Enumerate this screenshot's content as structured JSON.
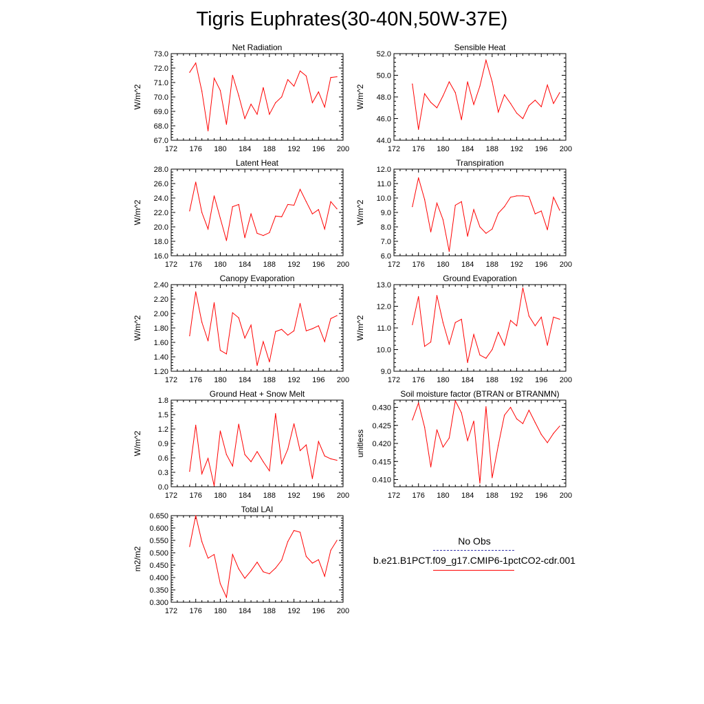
{
  "title": "Tigris Euphrates(30-40N,50W-37E)",
  "colors": {
    "model_line": "#ff0000",
    "obs_line": "#3333aa"
  },
  "legend": {
    "obs_label": "No Obs",
    "model_label": "b.e21.B1PCT.f09_g17.CMIP6-1pctCO2-cdr.001"
  },
  "chart_data": [
    {
      "type": "line",
      "title": "Net Radiation",
      "ylabel": "W/m^2",
      "xlim": [
        172,
        200
      ],
      "xticks": [
        "172",
        "176",
        "180",
        "184",
        "188",
        "192",
        "196",
        "200"
      ],
      "ylim": [
        67.0,
        73.0
      ],
      "yticks": [
        "67.0",
        "68.0",
        "69.0",
        "70.0",
        "71.0",
        "72.0",
        "73.0"
      ],
      "x": [
        175,
        176,
        177,
        178,
        179,
        180,
        181,
        182,
        183,
        184,
        185,
        186,
        187,
        188,
        189,
        190,
        191,
        192,
        193,
        194,
        195,
        196,
        197,
        198,
        199
      ],
      "series": [
        {
          "values": [
            71.7,
            72.35,
            70.4,
            67.65,
            71.3,
            70.45,
            68.1,
            71.5,
            70.1,
            68.5,
            69.5,
            68.8,
            70.65,
            68.8,
            69.6,
            70.0,
            71.2,
            70.75,
            71.8,
            71.45,
            69.6,
            70.35,
            69.3,
            71.35,
            71.4
          ]
        }
      ]
    },
    {
      "type": "line",
      "title": "Sensible Heat",
      "ylabel": "W/m^2",
      "xlim": [
        172,
        200
      ],
      "xticks": [
        "172",
        "176",
        "180",
        "184",
        "188",
        "192",
        "196",
        "200"
      ],
      "ylim": [
        44.0,
        52.0
      ],
      "yticks": [
        "44.0",
        "46.0",
        "48.0",
        "50.0",
        "52.0"
      ],
      "x": [
        175,
        176,
        177,
        178,
        179,
        180,
        181,
        182,
        183,
        184,
        185,
        186,
        187,
        188,
        189,
        190,
        191,
        192,
        193,
        194,
        195,
        196,
        197,
        198,
        199
      ],
      "series": [
        {
          "values": [
            49.2,
            45.0,
            48.3,
            47.5,
            47.0,
            48.1,
            49.4,
            48.4,
            45.9,
            49.4,
            47.3,
            49.0,
            51.4,
            49.4,
            46.6,
            48.2,
            47.4,
            46.5,
            46.0,
            47.2,
            47.7,
            47.1,
            49.1,
            47.4,
            48.4
          ]
        }
      ]
    },
    {
      "type": "line",
      "title": "Latent Heat",
      "ylabel": "W/m^2",
      "xlim": [
        172,
        200
      ],
      "xticks": [
        "172",
        "176",
        "180",
        "184",
        "188",
        "192",
        "196",
        "200"
      ],
      "ylim": [
        16.0,
        28.0
      ],
      "yticks": [
        "16.0",
        "18.0",
        "20.0",
        "22.0",
        "24.0",
        "26.0",
        "28.0"
      ],
      "x": [
        175,
        176,
        177,
        178,
        179,
        180,
        181,
        182,
        183,
        184,
        185,
        186,
        187,
        188,
        189,
        190,
        191,
        192,
        193,
        194,
        195,
        196,
        197,
        198,
        199
      ],
      "series": [
        {
          "values": [
            22.2,
            26.2,
            22.0,
            19.7,
            24.3,
            21.2,
            18.1,
            22.8,
            23.1,
            18.5,
            21.8,
            19.1,
            18.8,
            19.2,
            21.5,
            21.4,
            23.1,
            23.0,
            25.2,
            23.5,
            21.8,
            22.4,
            19.7,
            23.5,
            22.5
          ]
        }
      ]
    },
    {
      "type": "line",
      "title": "Transpiration",
      "ylabel": "W/m^2",
      "xlim": [
        172,
        200
      ],
      "xticks": [
        "172",
        "176",
        "180",
        "184",
        "188",
        "192",
        "196",
        "200"
      ],
      "ylim": [
        6.0,
        12.0
      ],
      "yticks": [
        "6.0",
        "7.0",
        "8.0",
        "9.0",
        "10.0",
        "11.0",
        "12.0"
      ],
      "x": [
        175,
        176,
        177,
        178,
        179,
        180,
        181,
        182,
        183,
        184,
        185,
        186,
        187,
        188,
        189,
        190,
        191,
        192,
        193,
        194,
        195,
        196,
        197,
        198,
        199
      ],
      "series": [
        {
          "values": [
            9.4,
            11.4,
            9.9,
            7.65,
            9.65,
            8.5,
            6.3,
            9.5,
            9.75,
            7.35,
            9.2,
            8.0,
            7.55,
            7.85,
            8.95,
            9.4,
            10.05,
            10.15,
            10.15,
            10.1,
            8.9,
            9.1,
            7.8,
            10.05,
            9.15
          ]
        }
      ]
    },
    {
      "type": "line",
      "title": "Canopy Evaporation",
      "ylabel": "W/m^2",
      "xlim": [
        172,
        200
      ],
      "xticks": [
        "172",
        "176",
        "180",
        "184",
        "188",
        "192",
        "196",
        "200"
      ],
      "ylim": [
        1.2,
        2.4
      ],
      "yticks": [
        "1.20",
        "1.40",
        "1.60",
        "1.80",
        "2.00",
        "2.20",
        "2.40"
      ],
      "x": [
        175,
        176,
        177,
        178,
        179,
        180,
        181,
        182,
        183,
        184,
        185,
        186,
        187,
        188,
        189,
        190,
        191,
        192,
        193,
        194,
        195,
        196,
        197,
        198,
        199
      ],
      "series": [
        {
          "values": [
            1.69,
            2.3,
            1.88,
            1.62,
            2.15,
            1.49,
            1.44,
            2.01,
            1.94,
            1.66,
            1.84,
            1.28,
            1.61,
            1.33,
            1.75,
            1.78,
            1.7,
            1.76,
            2.14,
            1.76,
            1.79,
            1.83,
            1.61,
            1.93,
            1.97
          ]
        }
      ]
    },
    {
      "type": "line",
      "title": "Ground Evaporation",
      "ylabel": "W/m^2",
      "xlim": [
        172,
        200
      ],
      "xticks": [
        "172",
        "176",
        "180",
        "184",
        "188",
        "192",
        "196",
        "200"
      ],
      "ylim": [
        9.0,
        13.0
      ],
      "yticks": [
        "9.0",
        "10.0",
        "11.0",
        "12.0",
        "13.0"
      ],
      "x": [
        175,
        176,
        177,
        178,
        179,
        180,
        181,
        182,
        183,
        184,
        185,
        186,
        187,
        188,
        189,
        190,
        191,
        192,
        193,
        194,
        195,
        196,
        197,
        198,
        199
      ],
      "series": [
        {
          "values": [
            11.15,
            12.45,
            10.15,
            10.35,
            12.5,
            11.25,
            10.25,
            11.25,
            11.4,
            9.4,
            10.7,
            9.75,
            9.6,
            10.0,
            10.8,
            10.2,
            11.35,
            11.1,
            12.85,
            11.55,
            11.1,
            11.5,
            10.2,
            11.5,
            11.4
          ]
        }
      ]
    },
    {
      "type": "line",
      "title": "Ground Heat + Snow Melt",
      "ylabel": "W/m^2",
      "xlim": [
        172,
        200
      ],
      "xticks": [
        "172",
        "176",
        "180",
        "184",
        "188",
        "192",
        "196",
        "200"
      ],
      "ylim": [
        0.0,
        1.8
      ],
      "yticks": [
        "0.0",
        "0.3",
        "0.6",
        "0.9",
        "1.2",
        "1.5",
        "1.8"
      ],
      "x": [
        175,
        176,
        177,
        178,
        179,
        180,
        181,
        182,
        183,
        184,
        185,
        186,
        187,
        188,
        189,
        190,
        191,
        192,
        193,
        194,
        195,
        196,
        197,
        198,
        199
      ],
      "series": [
        {
          "values": [
            0.32,
            1.28,
            0.27,
            0.59,
            0.02,
            1.16,
            0.67,
            0.43,
            1.3,
            0.67,
            0.52,
            0.73,
            0.52,
            0.33,
            1.52,
            0.48,
            0.78,
            1.31,
            0.75,
            0.87,
            0.17,
            0.94,
            0.64,
            0.58,
            0.55
          ]
        }
      ]
    },
    {
      "type": "line",
      "title": "Soil moisture factor (BTRAN or BTRANMN)",
      "ylabel": "unitless",
      "xlim": [
        172,
        200
      ],
      "xticks": [
        "172",
        "176",
        "180",
        "184",
        "188",
        "192",
        "196",
        "200"
      ],
      "ylim": [
        0.408,
        0.432
      ],
      "yticks": [
        "0.410",
        "0.415",
        "0.420",
        "0.425",
        "0.430"
      ],
      "x": [
        175,
        176,
        177,
        178,
        179,
        180,
        181,
        182,
        183,
        184,
        185,
        186,
        187,
        188,
        189,
        190,
        191,
        192,
        193,
        194,
        195,
        196,
        197,
        198,
        199
      ],
      "series": [
        {
          "values": [
            0.4265,
            0.4312,
            0.4245,
            0.4135,
            0.4238,
            0.419,
            0.4215,
            0.4318,
            0.4285,
            0.4208,
            0.4262,
            0.409,
            0.4302,
            0.4105,
            0.4195,
            0.4278,
            0.43,
            0.4268,
            0.4255,
            0.4292,
            0.4258,
            0.4225,
            0.4202,
            0.4228,
            0.4248
          ]
        }
      ]
    },
    {
      "type": "line",
      "title": "Total LAI",
      "ylabel": "m2/m2",
      "xlim": [
        172,
        200
      ],
      "xticks": [
        "172",
        "176",
        "180",
        "184",
        "188",
        "192",
        "196",
        "200"
      ],
      "ylim": [
        0.3,
        0.65
      ],
      "yticks": [
        "0.300",
        "0.350",
        "0.400",
        "0.450",
        "0.500",
        "0.550",
        "0.600",
        "0.650"
      ],
      "x": [
        175,
        176,
        177,
        178,
        179,
        180,
        181,
        182,
        183,
        184,
        185,
        186,
        187,
        188,
        189,
        190,
        191,
        192,
        193,
        194,
        195,
        196,
        197,
        198,
        199
      ],
      "series": [
        {
          "values": [
            0.525,
            0.65,
            0.545,
            0.478,
            0.493,
            0.375,
            0.32,
            0.493,
            0.435,
            0.397,
            0.427,
            0.462,
            0.423,
            0.415,
            0.438,
            0.47,
            0.545,
            0.59,
            0.583,
            0.485,
            0.458,
            0.472,
            0.405,
            0.51,
            0.55
          ]
        }
      ]
    }
  ]
}
